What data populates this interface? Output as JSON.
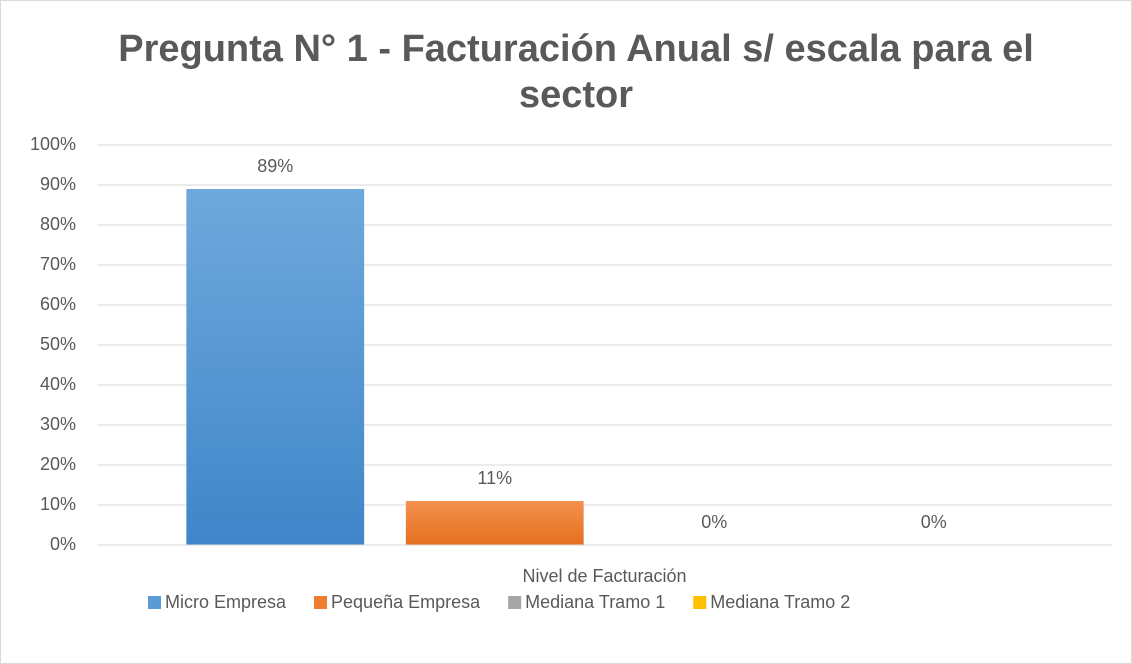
{
  "chart_data": {
    "type": "bar",
    "title": "Pregunta N° 1 - Facturación Anual s/ escala para el sector",
    "categories": [
      "Nivel de Facturación"
    ],
    "series": [
      {
        "name": "Micro Empresa",
        "color": "#5b9bd5",
        "values": [
          89
        ],
        "value_labels": [
          "89%"
        ]
      },
      {
        "name": "Pequeña Empresa",
        "color": "#ed7d31",
        "values": [
          11
        ],
        "value_labels": [
          "11%"
        ]
      },
      {
        "name": "Mediana Tramo 1",
        "color": "#a5a5a5",
        "values": [
          0
        ],
        "value_labels": [
          "0%"
        ]
      },
      {
        "name": "Mediana Tramo 2",
        "color": "#ffc000",
        "values": [
          0
        ],
        "value_labels": [
          "0%"
        ]
      }
    ],
    "ylim": [
      0,
      100
    ],
    "yticks": [
      {
        "value": 0,
        "label": "0%"
      },
      {
        "value": 10,
        "label": "10%"
      },
      {
        "value": 20,
        "label": "20%"
      },
      {
        "value": 30,
        "label": "30%"
      },
      {
        "value": 40,
        "label": "40%"
      },
      {
        "value": 50,
        "label": "50%"
      },
      {
        "value": 60,
        "label": "60%"
      },
      {
        "value": 70,
        "label": "70%"
      },
      {
        "value": 80,
        "label": "80%"
      },
      {
        "value": 90,
        "label": "90%"
      },
      {
        "value": 100,
        "label": "100%"
      }
    ],
    "grid": true,
    "legend": "bottom"
  }
}
